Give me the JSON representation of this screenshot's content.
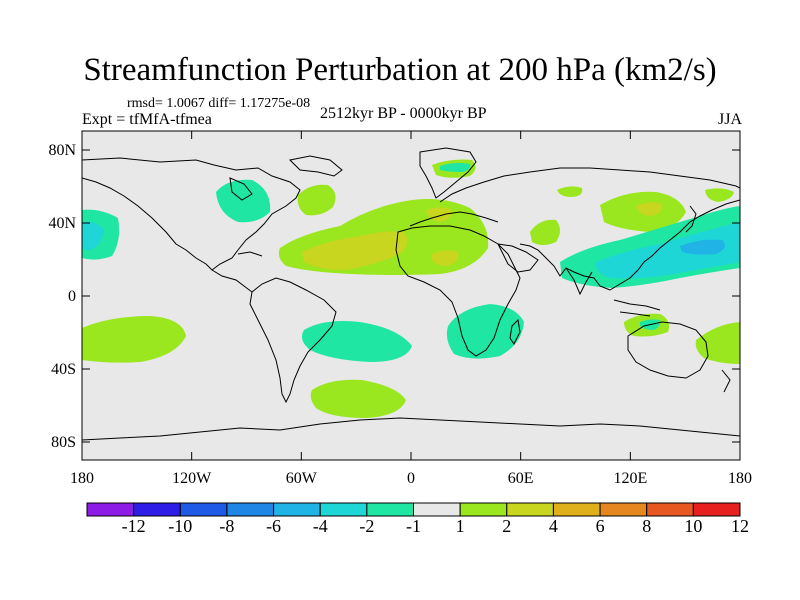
{
  "title": "Streamfunction Perturbation at 200 hPa (km2/s)",
  "stats": "rmsd= 1.0067 diff= 1.17275e-08",
  "experiment": "Expt = tfMfA-tfmea",
  "period": "2512kyr BP - 0000kyr BP",
  "season": "JJA",
  "axes": {
    "y_ticks": [
      "80N",
      "40N",
      "0",
      "40S",
      "80S"
    ],
    "x_ticks": [
      "180",
      "120W",
      "60W",
      "0",
      "60E",
      "120E",
      "180"
    ]
  },
  "colorbar": {
    "labels": [
      "-12",
      "-10",
      "-8",
      "-6",
      "-4",
      "-2",
      "-1",
      "1",
      "2",
      "4",
      "6",
      "8",
      "10",
      "12"
    ],
    "colors": [
      "#8c1ce6",
      "#2e1de6",
      "#1f5ae6",
      "#1f86e6",
      "#1fb3e6",
      "#1fd6d6",
      "#1fe6a3",
      "#e8e8e8",
      "#9ae61f",
      "#c8d61f",
      "#e0b01c",
      "#e6861f",
      "#e6581f",
      "#e61f1f"
    ]
  },
  "colors": {
    "ocean": "#e8e8e8",
    "neg_light": "#1fe6a3",
    "neg_mid": "#1fd6d6",
    "neg_deep": "#1fb3e6",
    "pos_light": "#9ae61f",
    "pos_mid": "#c8d61f"
  }
}
